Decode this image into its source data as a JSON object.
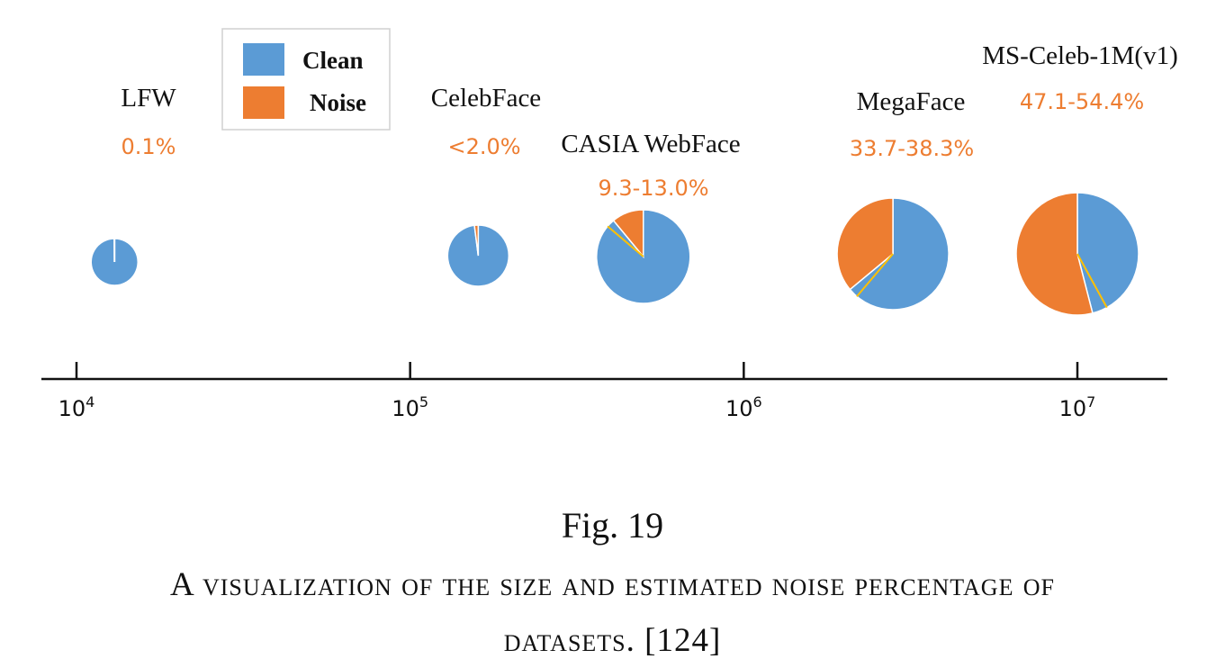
{
  "chart_data": {
    "type": "pie",
    "x_axis": {
      "scale": "log",
      "range": [
        10000,
        20000000
      ],
      "ticks": [
        {
          "value": 10000,
          "base": "10",
          "exp": "4"
        },
        {
          "value": 100000,
          "base": "10",
          "exp": "5"
        },
        {
          "value": 1000000,
          "base": "10",
          "exp": "6"
        },
        {
          "value": 10000000,
          "base": "10",
          "exp": "7"
        }
      ]
    },
    "legend": {
      "placement": "top-left",
      "entries": [
        {
          "name": "Clean",
          "color": "#5B9BD5"
        },
        {
          "name": "Noise",
          "color": "#ED7D31"
        }
      ]
    },
    "datasets": [
      {
        "name": "LFW",
        "label": "0.1%",
        "size": 13000,
        "noise": 0.001
      },
      {
        "name": "CelebFace",
        "label": "<2.0%",
        "size": 160000,
        "noise": 0.02
      },
      {
        "name": "CASIA WebFace",
        "label": "9.3-13.0%",
        "size": 500000,
        "noise": 0.11
      },
      {
        "name": "MegaFace",
        "label": "33.7-38.3%",
        "size": 2800000,
        "noise": 0.36
      },
      {
        "name": "MS-Celeb-1M(v1)",
        "label": "47.1-54.4%",
        "size": 10000000,
        "noise": 0.54
      }
    ]
  },
  "caption": {
    "fig": "Fig. 19",
    "line1": "A visualization of the size and estimated noise percentage of",
    "line2": "datasets. [124]"
  },
  "colors": {
    "clean": "#5B9BD5",
    "noise": "#ED7D31",
    "text": "#111111"
  }
}
